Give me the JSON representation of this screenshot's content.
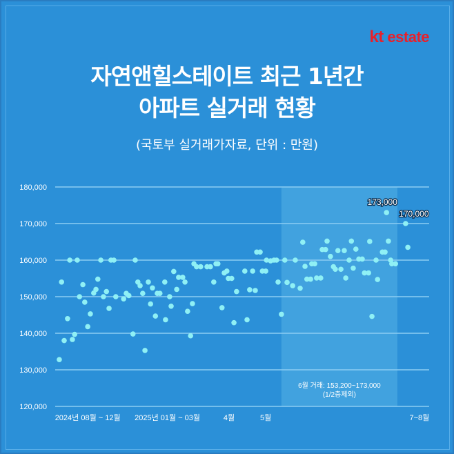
{
  "brand": {
    "logo_kt": "kt",
    "logo_estate": "estate"
  },
  "header": {
    "title_line1": "자연앤힐스테이트 최근 1년간",
    "title_line2": "아파트 실거래 현황",
    "subtitle": "(국토부 실거래가자료, 단위 : 만원)"
  },
  "colors": {
    "background": "#2b90d8",
    "point": "#8ff0f5",
    "grid": "#8ccdf3",
    "band": "#4aa8e2",
    "logo": "#e8202a"
  },
  "chart_data": {
    "type": "scatter",
    "title": "자연앤힐스테이트 최근 1년간 아파트 실거래 현황",
    "ylabel": "만원",
    "ylim": [
      120000,
      180000
    ],
    "xlim": [
      0,
      100
    ],
    "grid": true,
    "yticks": [
      "120,000",
      "130,000",
      "140,000",
      "150,000",
      "160,000",
      "170,000",
      "180,000"
    ],
    "ytick_values": [
      120000,
      130000,
      140000,
      150000,
      160000,
      170000,
      180000
    ],
    "xticks": [
      {
        "label": "2024년 08월 ~ 12월",
        "at": 8.7
      },
      {
        "label": "2025년 01월 ~ 03월",
        "at": 30
      },
      {
        "label": "4월",
        "at": 46.5
      },
      {
        "label": "5월",
        "at": 56.3
      },
      {
        "label": "7~8월",
        "at": 97.4
      }
    ],
    "highlight_band": {
      "from": 60.5,
      "to": 91.5,
      "label": "6월 거래: 153,200~173,000",
      "note": "(1/2층제외)"
    },
    "annotations": [
      {
        "text": "173,000",
        "x": 88.6,
        "y": 173000
      },
      {
        "text": "170,000",
        "x": 93.7,
        "y": 170000
      }
    ],
    "points": [
      [
        1.1,
        132800
      ],
      [
        1.7,
        154000
      ],
      [
        2.4,
        138000
      ],
      [
        3.3,
        144000
      ],
      [
        3.9,
        160000
      ],
      [
        4.6,
        138300
      ],
      [
        5.2,
        139700
      ],
      [
        5.9,
        160000
      ],
      [
        6.5,
        150000
      ],
      [
        7.4,
        153300
      ],
      [
        7.9,
        148500
      ],
      [
        8.7,
        141800
      ],
      [
        9.4,
        145300
      ],
      [
        10.3,
        151000
      ],
      [
        10.9,
        152000
      ],
      [
        11.4,
        154800
      ],
      [
        12.2,
        160000
      ],
      [
        12.9,
        150000
      ],
      [
        13.7,
        151400
      ],
      [
        14.4,
        146800
      ],
      [
        14.9,
        160000
      ],
      [
        15.7,
        160000
      ],
      [
        16.2,
        150000
      ],
      [
        18.3,
        149400
      ],
      [
        19.0,
        150900
      ],
      [
        19.7,
        150300
      ],
      [
        20.8,
        139800
      ],
      [
        21.4,
        160000
      ],
      [
        22.1,
        154000
      ],
      [
        22.7,
        153000
      ],
      [
        23.4,
        150900
      ],
      [
        24.0,
        135300
      ],
      [
        24.9,
        154000
      ],
      [
        25.5,
        148000
      ],
      [
        26.0,
        152400
      ],
      [
        26.8,
        144700
      ],
      [
        27.3,
        150900
      ],
      [
        28.0,
        150900
      ],
      [
        29.3,
        154000
      ],
      [
        29.5,
        143700
      ],
      [
        30.6,
        150000
      ],
      [
        31.0,
        147400
      ],
      [
        31.7,
        156900
      ],
      [
        32.5,
        152000
      ],
      [
        33.0,
        155300
      ],
      [
        34.1,
        155300
      ],
      [
        34.7,
        154000
      ],
      [
        35.4,
        146000
      ],
      [
        36.2,
        139300
      ],
      [
        36.7,
        148100
      ],
      [
        37.1,
        159000
      ],
      [
        37.8,
        158200
      ],
      [
        38.9,
        158200
      ],
      [
        40.6,
        158200
      ],
      [
        41.5,
        158200
      ],
      [
        42.4,
        154000
      ],
      [
        43.0,
        159000
      ],
      [
        43.5,
        159000
      ],
      [
        44.6,
        147000
      ],
      [
        45.2,
        156500
      ],
      [
        45.9,
        157000
      ],
      [
        46.3,
        155000
      ],
      [
        47.2,
        155000
      ],
      [
        47.8,
        142900
      ],
      [
        48.5,
        151400
      ],
      [
        50.7,
        157000
      ],
      [
        51.3,
        143700
      ],
      [
        52.0,
        151900
      ],
      [
        52.8,
        157000
      ],
      [
        53.5,
        151700
      ],
      [
        53.9,
        162200
      ],
      [
        54.8,
        162200
      ],
      [
        55.4,
        157000
      ],
      [
        56.3,
        157000
      ],
      [
        56.5,
        160000
      ],
      [
        57.6,
        159800
      ],
      [
        58.5,
        160000
      ],
      [
        59.2,
        160000
      ],
      [
        59.6,
        154000
      ],
      [
        60.5,
        145200
      ],
      [
        61.4,
        160000
      ],
      [
        62.0,
        153900
      ],
      [
        63.5,
        153000
      ],
      [
        64.2,
        160000
      ],
      [
        65.5,
        152300
      ],
      [
        66.2,
        164900
      ],
      [
        66.8,
        158300
      ],
      [
        67.3,
        154800
      ],
      [
        68.3,
        154800
      ],
      [
        68.6,
        159000
      ],
      [
        69.4,
        159000
      ],
      [
        69.9,
        155100
      ],
      [
        71.0,
        155100
      ],
      [
        71.4,
        162900
      ],
      [
        72.3,
        162900
      ],
      [
        72.7,
        165200
      ],
      [
        73.6,
        161000
      ],
      [
        74.4,
        158200
      ],
      [
        74.9,
        157500
      ],
      [
        75.6,
        162600
      ],
      [
        76.4,
        157500
      ],
      [
        77.3,
        162600
      ],
      [
        77.7,
        155100
      ],
      [
        78.6,
        160000
      ],
      [
        79.2,
        165200
      ],
      [
        79.7,
        157800
      ],
      [
        80.4,
        163000
      ],
      [
        81.2,
        160300
      ],
      [
        82.1,
        160300
      ],
      [
        82.7,
        156500
      ],
      [
        83.8,
        156500
      ],
      [
        84.1,
        165100
      ],
      [
        84.7,
        144600
      ],
      [
        85.8,
        160000
      ],
      [
        86.2,
        154700
      ],
      [
        87.5,
        162200
      ],
      [
        88.2,
        162200
      ],
      [
        88.6,
        173000
      ],
      [
        89.1,
        165200
      ],
      [
        89.7,
        160000
      ],
      [
        90.0,
        159000
      ],
      [
        91.0,
        159000
      ],
      [
        93.7,
        170000
      ],
      [
        94.3,
        163500
      ]
    ]
  }
}
